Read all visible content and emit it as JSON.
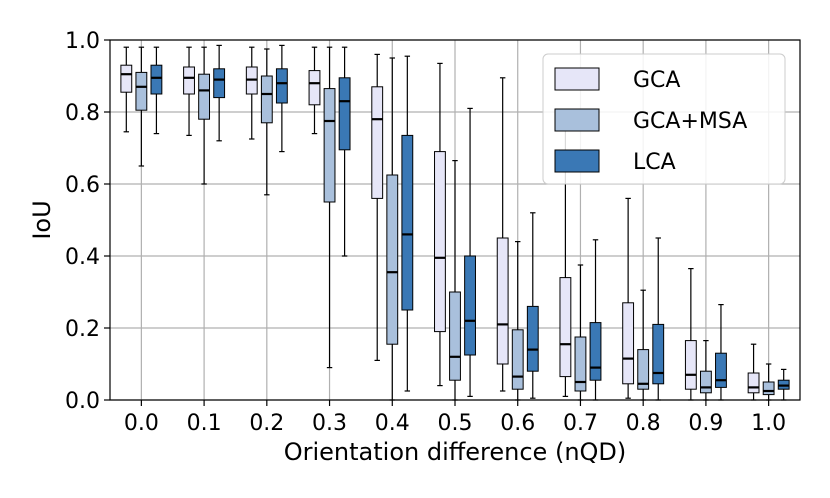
{
  "chart_data": {
    "type": "boxplot",
    "xlabel": "Orientation difference (nQD)",
    "ylabel": "IoU",
    "ylim": [
      0.0,
      1.0
    ],
    "yticks": [
      "0.0",
      "0.2",
      "0.4",
      "0.6",
      "0.8",
      "1.0"
    ],
    "categories": [
      "0.0",
      "0.1",
      "0.2",
      "0.3",
      "0.4",
      "0.5",
      "0.6",
      "0.7",
      "0.8",
      "0.9",
      "1.0"
    ],
    "grid": true,
    "legend_position": "top-right",
    "series": [
      {
        "name": "GCA",
        "color": "#e6e6f8",
        "boxes": [
          {
            "whislo": 0.745,
            "q1": 0.855,
            "med": 0.905,
            "q3": 0.93,
            "whishi": 0.98
          },
          {
            "whislo": 0.735,
            "q1": 0.85,
            "med": 0.895,
            "q3": 0.925,
            "whishi": 0.98
          },
          {
            "whislo": 0.725,
            "q1": 0.85,
            "med": 0.89,
            "q3": 0.925,
            "whishi": 0.98
          },
          {
            "whislo": 0.74,
            "q1": 0.82,
            "med": 0.88,
            "q3": 0.915,
            "whishi": 0.98
          },
          {
            "whislo": 0.11,
            "q1": 0.56,
            "med": 0.78,
            "q3": 0.87,
            "whishi": 0.96
          },
          {
            "whislo": 0.04,
            "q1": 0.19,
            "med": 0.395,
            "q3": 0.69,
            "whishi": 0.935
          },
          {
            "whislo": 0.025,
            "q1": 0.1,
            "med": 0.21,
            "q3": 0.45,
            "whishi": 0.895
          },
          {
            "whislo": 0.01,
            "q1": 0.065,
            "med": 0.155,
            "q3": 0.34,
            "whishi": 0.75
          },
          {
            "whislo": 0.005,
            "q1": 0.045,
            "med": 0.115,
            "q3": 0.27,
            "whishi": 0.56
          },
          {
            "whislo": 0.0,
            "q1": 0.03,
            "med": 0.07,
            "q3": 0.165,
            "whishi": 0.365
          },
          {
            "whislo": 0.0,
            "q1": 0.02,
            "med": 0.035,
            "q3": 0.075,
            "whishi": 0.155
          }
        ]
      },
      {
        "name": "GCA+MSA",
        "color": "#a9c0dc",
        "boxes": [
          {
            "whislo": 0.65,
            "q1": 0.805,
            "med": 0.87,
            "q3": 0.91,
            "whishi": 0.98
          },
          {
            "whislo": 0.6,
            "q1": 0.78,
            "med": 0.86,
            "q3": 0.905,
            "whishi": 0.98
          },
          {
            "whislo": 0.57,
            "q1": 0.77,
            "med": 0.85,
            "q3": 0.9,
            "whishi": 0.975
          },
          {
            "whislo": 0.09,
            "q1": 0.55,
            "med": 0.775,
            "q3": 0.865,
            "whishi": 0.98
          },
          {
            "whislo": 0.0,
            "q1": 0.155,
            "med": 0.355,
            "q3": 0.625,
            "whishi": 0.95
          },
          {
            "whislo": 0.0,
            "q1": 0.055,
            "med": 0.12,
            "q3": 0.3,
            "whishi": 0.665
          },
          {
            "whislo": 0.0,
            "q1": 0.03,
            "med": 0.065,
            "q3": 0.195,
            "whishi": 0.44
          },
          {
            "whislo": 0.0,
            "q1": 0.025,
            "med": 0.05,
            "q3": 0.175,
            "whishi": 0.375
          },
          {
            "whislo": 0.0,
            "q1": 0.03,
            "med": 0.045,
            "q3": 0.14,
            "whishi": 0.305
          },
          {
            "whislo": 0.0,
            "q1": 0.02,
            "med": 0.035,
            "q3": 0.08,
            "whishi": 0.165
          },
          {
            "whislo": 0.0,
            "q1": 0.015,
            "med": 0.025,
            "q3": 0.05,
            "whishi": 0.1
          }
        ]
      },
      {
        "name": "LCA",
        "color": "#3a78b5",
        "boxes": [
          {
            "whislo": 0.74,
            "q1": 0.85,
            "med": 0.895,
            "q3": 0.93,
            "whishi": 0.98
          },
          {
            "whislo": 0.72,
            "q1": 0.84,
            "med": 0.89,
            "q3": 0.92,
            "whishi": 0.985
          },
          {
            "whislo": 0.69,
            "q1": 0.825,
            "med": 0.88,
            "q3": 0.92,
            "whishi": 0.985
          },
          {
            "whislo": 0.4,
            "q1": 0.695,
            "med": 0.83,
            "q3": 0.895,
            "whishi": 0.98
          },
          {
            "whislo": 0.025,
            "q1": 0.25,
            "med": 0.46,
            "q3": 0.735,
            "whishi": 0.955
          },
          {
            "whislo": 0.01,
            "q1": 0.125,
            "med": 0.22,
            "q3": 0.4,
            "whishi": 0.81
          },
          {
            "whislo": 0.005,
            "q1": 0.08,
            "med": 0.14,
            "q3": 0.26,
            "whishi": 0.52
          },
          {
            "whislo": 0.0,
            "q1": 0.055,
            "med": 0.09,
            "q3": 0.215,
            "whishi": 0.445
          },
          {
            "whislo": 0.0,
            "q1": 0.045,
            "med": 0.075,
            "q3": 0.21,
            "whishi": 0.45
          },
          {
            "whislo": 0.0,
            "q1": 0.035,
            "med": 0.055,
            "q3": 0.13,
            "whishi": 0.265
          },
          {
            "whislo": 0.0,
            "q1": 0.03,
            "med": 0.04,
            "q3": 0.055,
            "whishi": 0.085
          }
        ]
      }
    ]
  }
}
